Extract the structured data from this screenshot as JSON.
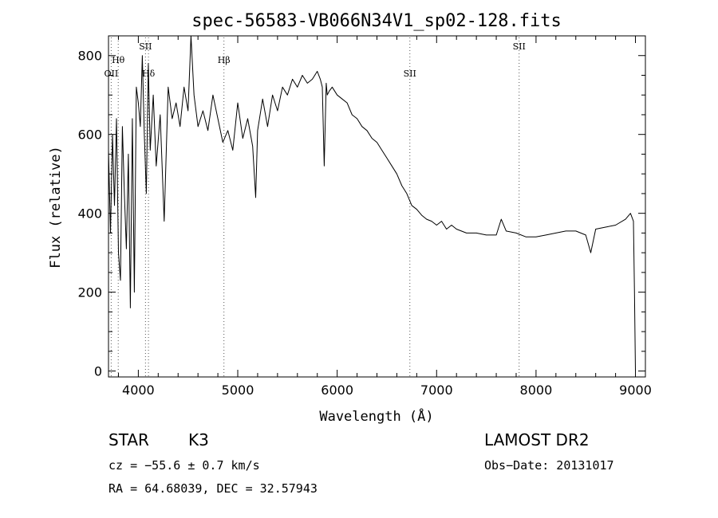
{
  "chart_data": {
    "type": "line",
    "title": "spec-56583-VB066N34V1_sp02-128.fits",
    "xlabel": "Wavelength (Å)",
    "ylabel": "Flux (relative)",
    "xlim": [
      3700,
      9100
    ],
    "ylim": [
      -15,
      850
    ],
    "x_ticks": [
      4000,
      5000,
      6000,
      7000,
      8000,
      9000
    ],
    "y_ticks": [
      0,
      200,
      400,
      600,
      800
    ],
    "series": [
      {
        "x": [
          3700,
          3720,
          3740,
          3760,
          3780,
          3800,
          3820,
          3840,
          3860,
          3880,
          3900,
          3920,
          3940,
          3960,
          3980,
          4000,
          4020,
          4040,
          4060,
          4080,
          4100,
          4120,
          4150,
          4180,
          4220,
          4260,
          4300,
          4340,
          4380,
          4420,
          4460,
          4500,
          4530,
          4560,
          4600,
          4650,
          4700,
          4750,
          4800,
          4850,
          4900,
          4950,
          5000,
          5050,
          5100,
          5150,
          5180,
          5200,
          5250,
          5300,
          5350,
          5400,
          5450,
          5500,
          5550,
          5600,
          5650,
          5700,
          5750,
          5800,
          5830,
          5850,
          5870,
          5890,
          5900,
          5920,
          5950,
          6000,
          6050,
          6100,
          6150,
          6200,
          6250,
          6300,
          6350,
          6400,
          6450,
          6500,
          6550,
          6600,
          6650,
          6700,
          6750,
          6800,
          6850,
          6900,
          6950,
          7000,
          7050,
          7100,
          7150,
          7200,
          7300,
          7400,
          7500,
          7600,
          7650,
          7700,
          7800,
          7900,
          8000,
          8100,
          8200,
          8300,
          8400,
          8500,
          8550,
          8600,
          8700,
          8800,
          8900,
          8950,
          8980,
          8990,
          9000
        ],
        "y": [
          560,
          350,
          600,
          420,
          640,
          300,
          230,
          620,
          450,
          310,
          550,
          160,
          640,
          200,
          720,
          680,
          620,
          800,
          600,
          450,
          780,
          560,
          700,
          520,
          650,
          380,
          720,
          640,
          680,
          620,
          720,
          660,
          850,
          700,
          620,
          660,
          610,
          700,
          640,
          580,
          610,
          560,
          680,
          590,
          640,
          570,
          440,
          610,
          690,
          620,
          700,
          660,
          720,
          700,
          740,
          720,
          750,
          730,
          740,
          760,
          740,
          720,
          520,
          730,
          700,
          710,
          720,
          700,
          690,
          680,
          650,
          640,
          620,
          610,
          590,
          580,
          560,
          540,
          520,
          500,
          470,
          450,
          420,
          410,
          395,
          385,
          380,
          370,
          380,
          360,
          370,
          360,
          350,
          350,
          345,
          345,
          385,
          355,
          350,
          340,
          340,
          345,
          350,
          355,
          355,
          345,
          300,
          360,
          365,
          370,
          385,
          400,
          380,
          200,
          0
        ]
      }
    ],
    "lines": [
      {
        "x": 3727,
        "label": "OII",
        "row": 1
      },
      {
        "x": 3798,
        "label": "Hθ",
        "row": 0
      },
      {
        "x": 4072,
        "label": "SII",
        "row": -1
      },
      {
        "x": 4102,
        "label": "Hδ",
        "row": 1
      },
      {
        "x": 4861,
        "label": "Hβ",
        "row": 0
      },
      {
        "x": 6731,
        "label": "SII",
        "row": 1
      },
      {
        "x": 7830,
        "label": "SII",
        "row": -1
      }
    ]
  },
  "info": {
    "class": "STAR",
    "subclass": "K3",
    "survey": "LAMOST DR2",
    "cz": "cz = −55.6 ± 0.7 km/s",
    "obs_date": "Obs−Date: 20131017",
    "coords": "RA =  64.68039, DEC =  32.57943"
  }
}
